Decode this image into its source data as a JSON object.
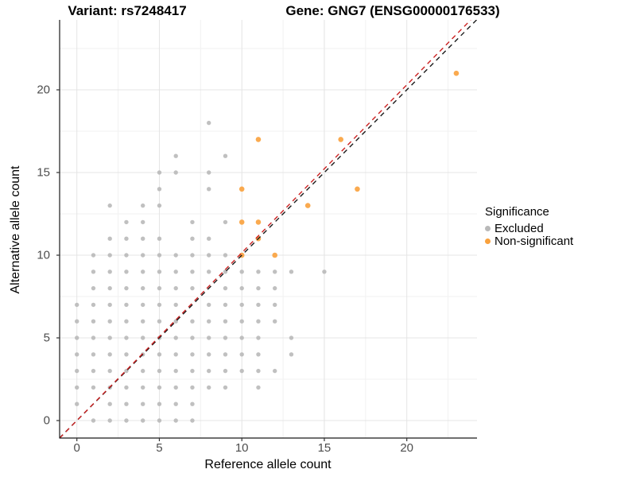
{
  "titles": {
    "variant": "Variant: rs7248417",
    "gene": "Gene: GNG7 (ENSG00000176533)"
  },
  "axes": {
    "x": {
      "label": "Reference allele count",
      "ticks": [
        "0",
        "5",
        "10",
        "15",
        "20"
      ],
      "tick_values": [
        0,
        5,
        10,
        15,
        20
      ]
    },
    "y": {
      "label": "Alternative allele count",
      "ticks": [
        "0",
        "5",
        "10",
        "15",
        "20"
      ],
      "tick_values": [
        0,
        5,
        10,
        15,
        20
      ]
    }
  },
  "legend": {
    "title": "Significance",
    "items": [
      {
        "label": "Excluded",
        "color": "#b9b9b9"
      },
      {
        "label": "Non-significant",
        "color": "#f9a13c"
      }
    ]
  },
  "colors": {
    "excluded_point": "#b9b9b9",
    "nonsignificant_point": "#f9a13c",
    "identity_line": "#1a1a1a",
    "fit_line": "#cc2222",
    "major_grid": "#e4e4e4",
    "minor_grid": "#f1f1f1",
    "axis_line": "#1a1a1a",
    "tick_text": "#4d4d4d"
  },
  "chart_data": {
    "type": "scatter",
    "title": "Variant: rs7248417   Gene: GNG7 (ENSG00000176533)",
    "xlabel": "Reference allele count",
    "ylabel": "Alternative allele count",
    "xlim": [
      -1.1,
      24.4
    ],
    "ylim": [
      -1.1,
      24.3
    ],
    "grid": "major and minor (minor at 2.5 intervals)",
    "legend_position": "right",
    "series": [
      {
        "name": "Excluded",
        "color": "#b9b9b9",
        "marker_radius": 2.7,
        "points": [
          [
            1,
            0
          ],
          [
            2,
            0
          ],
          [
            3,
            0
          ],
          [
            4,
            0
          ],
          [
            5,
            0
          ],
          [
            6,
            0
          ],
          [
            7,
            0
          ],
          [
            0,
            1
          ],
          [
            2,
            1
          ],
          [
            3,
            1
          ],
          [
            4,
            1
          ],
          [
            5,
            1
          ],
          [
            6,
            1
          ],
          [
            7,
            1
          ],
          [
            0,
            2
          ],
          [
            1,
            2
          ],
          [
            2,
            2
          ],
          [
            3,
            2
          ],
          [
            4,
            2
          ],
          [
            5,
            2
          ],
          [
            6,
            2
          ],
          [
            7,
            2
          ],
          [
            8,
            2
          ],
          [
            9,
            2
          ],
          [
            11,
            2
          ],
          [
            0,
            3
          ],
          [
            1,
            3
          ],
          [
            2,
            3
          ],
          [
            3,
            3
          ],
          [
            4,
            3
          ],
          [
            5,
            3
          ],
          [
            6,
            3
          ],
          [
            7,
            3
          ],
          [
            8,
            3
          ],
          [
            9,
            3
          ],
          [
            10,
            3
          ],
          [
            11,
            3
          ],
          [
            12,
            3
          ],
          [
            0,
            4
          ],
          [
            1,
            4
          ],
          [
            2,
            4
          ],
          [
            3,
            4
          ],
          [
            4,
            4
          ],
          [
            5,
            4
          ],
          [
            6,
            4
          ],
          [
            7,
            4
          ],
          [
            8,
            4
          ],
          [
            9,
            4
          ],
          [
            10,
            4
          ],
          [
            11,
            4
          ],
          [
            13,
            4
          ],
          [
            0,
            5
          ],
          [
            1,
            5
          ],
          [
            2,
            5
          ],
          [
            3,
            5
          ],
          [
            4,
            5
          ],
          [
            5,
            5
          ],
          [
            6,
            5
          ],
          [
            7,
            5
          ],
          [
            8,
            5
          ],
          [
            9,
            5
          ],
          [
            10,
            5
          ],
          [
            11,
            5
          ],
          [
            13,
            5
          ],
          [
            0,
            6
          ],
          [
            1,
            6
          ],
          [
            2,
            6
          ],
          [
            3,
            6
          ],
          [
            4,
            6
          ],
          [
            5,
            6
          ],
          [
            6,
            6
          ],
          [
            7,
            6
          ],
          [
            8,
            6
          ],
          [
            9,
            6
          ],
          [
            10,
            6
          ],
          [
            11,
            6
          ],
          [
            12,
            6
          ],
          [
            0,
            7
          ],
          [
            1,
            7
          ],
          [
            2,
            7
          ],
          [
            3,
            7
          ],
          [
            4,
            7
          ],
          [
            5,
            7
          ],
          [
            6,
            7
          ],
          [
            8,
            7
          ],
          [
            9,
            7
          ],
          [
            10,
            7
          ],
          [
            11,
            7
          ],
          [
            12,
            7
          ],
          [
            1,
            8
          ],
          [
            2,
            8
          ],
          [
            3,
            8
          ],
          [
            4,
            8
          ],
          [
            5,
            8
          ],
          [
            6,
            8
          ],
          [
            7,
            8
          ],
          [
            9,
            8
          ],
          [
            10,
            8
          ],
          [
            11,
            8
          ],
          [
            12,
            8
          ],
          [
            1,
            9
          ],
          [
            2,
            9
          ],
          [
            3,
            9
          ],
          [
            4,
            9
          ],
          [
            5,
            9
          ],
          [
            6,
            9
          ],
          [
            7,
            9
          ],
          [
            8,
            9
          ],
          [
            9,
            9
          ],
          [
            10,
            9
          ],
          [
            11,
            9
          ],
          [
            12,
            9
          ],
          [
            13,
            9
          ],
          [
            15,
            9
          ],
          [
            1,
            10
          ],
          [
            2,
            10
          ],
          [
            3,
            10
          ],
          [
            4,
            10
          ],
          [
            5,
            10
          ],
          [
            6,
            10
          ],
          [
            7,
            10
          ],
          [
            8,
            10
          ],
          [
            9,
            10
          ],
          [
            2,
            11
          ],
          [
            3,
            11
          ],
          [
            4,
            11
          ],
          [
            5,
            11
          ],
          [
            7,
            11
          ],
          [
            8,
            11
          ],
          [
            3,
            12
          ],
          [
            4,
            12
          ],
          [
            7,
            12
          ],
          [
            9,
            12
          ],
          [
            2,
            13
          ],
          [
            4,
            13
          ],
          [
            5,
            13
          ],
          [
            5,
            14
          ],
          [
            8,
            14
          ],
          [
            5,
            15
          ],
          [
            6,
            15
          ],
          [
            8,
            15
          ],
          [
            6,
            16
          ],
          [
            9,
            16
          ],
          [
            8,
            18
          ]
        ]
      },
      {
        "name": "Non-significant",
        "color": "#f9a13c",
        "marker_radius": 3.3,
        "points": [
          [
            10,
            10
          ],
          [
            12,
            10
          ],
          [
            11,
            11
          ],
          [
            10,
            12
          ],
          [
            11,
            12
          ],
          [
            14,
            13
          ],
          [
            10,
            14
          ],
          [
            17,
            14
          ],
          [
            11,
            17
          ],
          [
            16,
            17
          ],
          [
            23,
            21
          ]
        ]
      }
    ],
    "lines": [
      {
        "name": "identity",
        "style": "dashed",
        "color": "#1a1a1a",
        "slope": 1.0,
        "intercept": 0
      },
      {
        "name": "fit",
        "style": "dashed",
        "color": "#cc2222",
        "slope": 1.015,
        "intercept": 0
      }
    ]
  }
}
